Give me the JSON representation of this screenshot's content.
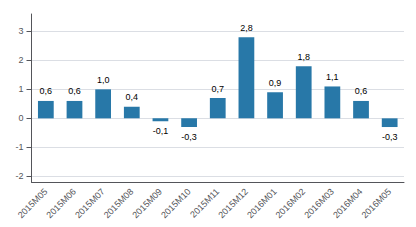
{
  "chart_data": {
    "type": "bar",
    "categories": [
      "2015M05",
      "2015M06",
      "2015M07",
      "2015M08",
      "2015M09",
      "2015M10",
      "2015M11",
      "2015M12",
      "2016M01",
      "2016M02",
      "2016M03",
      "2016M04",
      "2016M05"
    ],
    "values": [
      0.6,
      0.6,
      1.0,
      0.4,
      -0.1,
      -0.3,
      0.7,
      2.8,
      0.9,
      1.8,
      1.1,
      0.6,
      -0.3
    ],
    "value_labels": [
      "0,6",
      "0,6",
      "1,0",
      "0,4",
      "-0,1",
      "-0,3",
      "0,7",
      "2,8",
      "0,9",
      "1,8",
      "1,1",
      "0,6",
      "-0,3"
    ],
    "data_labels": true,
    "color": "#2878a8",
    "ylim": [
      -2.2,
      3.6
    ],
    "yticks": [
      -2,
      -1,
      0,
      1,
      2,
      3
    ],
    "grid": true
  }
}
